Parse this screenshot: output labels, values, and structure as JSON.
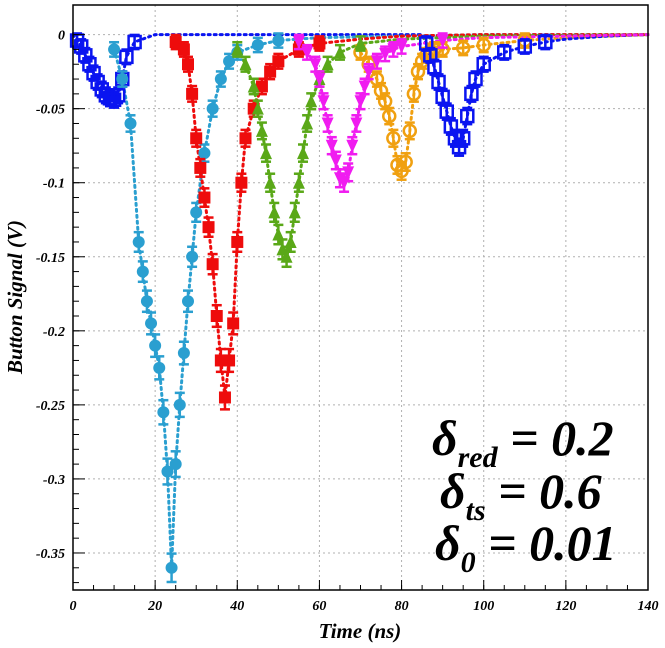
{
  "chart_data": {
    "type": "scatter",
    "title": "",
    "xlabel": "Time (ns)",
    "ylabel": "Button Signal (V)",
    "xlim": [
      0,
      140
    ],
    "ylim": [
      -0.375,
      0.02
    ],
    "xticks": [
      0,
      20,
      40,
      60,
      80,
      100,
      120,
      140
    ],
    "xtick_labels": [
      "0",
      "20",
      "40",
      "60",
      "80",
      "100",
      "120",
      "140"
    ],
    "yticks": [
      0,
      -0.05,
      -0.1,
      -0.15,
      -0.2,
      -0.25,
      -0.3,
      -0.35
    ],
    "ytick_labels": [
      "0",
      "-0.05",
      "-0.1",
      "-0.15",
      "-0.2",
      "-0.25",
      "-0.3",
      "-0.35"
    ],
    "grid": true,
    "annotations": [
      {
        "symbol": "δ",
        "sub": "red",
        "text": " = 0.2"
      },
      {
        "symbol": "δ",
        "sub": "ts",
        "text": " = 0.6"
      },
      {
        "symbol": "δ",
        "sub": "0",
        "text": " = 0.01"
      }
    ],
    "series": [
      {
        "color": "#f0a010",
        "marker": "circle-open",
        "x": [
          70,
          72,
          74,
          75,
          76,
          77,
          78,
          79,
          80,
          81,
          82,
          83,
          84,
          85,
          86,
          87,
          88,
          90,
          95,
          100,
          110,
          120,
          130,
          140
        ],
        "y": [
          -0.012,
          -0.02,
          -0.03,
          -0.038,
          -0.045,
          -0.055,
          -0.07,
          -0.088,
          -0.092,
          -0.086,
          -0.065,
          -0.04,
          -0.025,
          -0.018,
          -0.014,
          -0.011,
          -0.01,
          -0.01,
          -0.009,
          -0.007,
          -0.004,
          -0.002,
          -0.001,
          0
        ]
      },
      {
        "color": "#0a14f0",
        "marker": "square-open",
        "x": [
          0,
          1,
          2,
          3,
          4,
          5,
          6,
          7,
          8,
          9,
          10,
          11,
          12,
          13,
          15,
          20,
          30,
          40,
          50,
          60,
          70,
          80,
          85,
          86,
          87,
          88,
          89,
          90,
          91,
          92,
          93,
          94,
          95,
          96,
          97,
          98,
          100,
          105,
          110,
          115,
          120,
          130,
          140
        ],
        "y": [
          0,
          -0.004,
          -0.008,
          -0.014,
          -0.02,
          -0.026,
          -0.032,
          -0.037,
          -0.041,
          -0.043,
          -0.044,
          -0.041,
          -0.03,
          -0.015,
          -0.005,
          0,
          0,
          0,
          0,
          0,
          0,
          0,
          0,
          -0.006,
          -0.014,
          -0.022,
          -0.032,
          -0.042,
          -0.052,
          -0.062,
          -0.07,
          -0.076,
          -0.07,
          -0.055,
          -0.04,
          -0.03,
          -0.02,
          -0.012,
          -0.008,
          -0.005,
          -0.003,
          -0.001,
          0
        ]
      },
      {
        "color": "#2a9fd0",
        "marker": "circle-filled",
        "x": [
          10,
          12,
          14,
          16,
          17,
          18,
          19,
          20,
          21,
          22,
          23,
          24,
          25,
          26,
          27,
          28,
          29,
          30,
          32,
          34,
          36,
          38,
          40,
          45,
          50,
          60,
          80,
          100,
          140
        ],
        "y": [
          -0.01,
          -0.03,
          -0.06,
          -0.14,
          -0.16,
          -0.18,
          -0.195,
          -0.21,
          -0.225,
          -0.255,
          -0.295,
          -0.36,
          -0.29,
          -0.25,
          -0.215,
          -0.18,
          -0.15,
          -0.12,
          -0.08,
          -0.05,
          -0.03,
          -0.018,
          -0.012,
          -0.007,
          -0.004,
          -0.002,
          -0.001,
          0,
          0
        ]
      },
      {
        "color": "#ee0c0c",
        "marker": "square-filled",
        "x": [
          25,
          27,
          28,
          29,
          30,
          31,
          32,
          33,
          34,
          35,
          36,
          37,
          38,
          39,
          40,
          41,
          42,
          44,
          46,
          48,
          50,
          55,
          60,
          70,
          80,
          100,
          140
        ],
        "y": [
          -0.005,
          -0.01,
          -0.02,
          -0.04,
          -0.07,
          -0.09,
          -0.11,
          -0.13,
          -0.155,
          -0.19,
          -0.22,
          -0.245,
          -0.22,
          -0.195,
          -0.14,
          -0.1,
          -0.07,
          -0.05,
          -0.035,
          -0.025,
          -0.018,
          -0.01,
          -0.006,
          -0.003,
          -0.001,
          0,
          0
        ]
      },
      {
        "color": "#5aa818",
        "marker": "triangle-up",
        "x": [
          40,
          42,
          44,
          45,
          46,
          47,
          48,
          49,
          50,
          51,
          52,
          53,
          54,
          55,
          56,
          57,
          58,
          60,
          62,
          65,
          70,
          80,
          100,
          140
        ],
        "y": [
          -0.01,
          -0.02,
          -0.035,
          -0.05,
          -0.065,
          -0.08,
          -0.1,
          -0.12,
          -0.135,
          -0.145,
          -0.15,
          -0.14,
          -0.12,
          -0.1,
          -0.08,
          -0.06,
          -0.045,
          -0.03,
          -0.02,
          -0.012,
          -0.006,
          -0.003,
          -0.001,
          0
        ]
      },
      {
        "color": "#f01cf0",
        "marker": "triangle-down",
        "x": [
          55,
          57,
          59,
          60,
          61,
          62,
          63,
          64,
          65,
          66,
          67,
          68,
          69,
          70,
          71,
          72,
          74,
          76,
          78,
          80,
          90,
          100,
          140
        ],
        "y": [
          -0.005,
          -0.012,
          -0.02,
          -0.03,
          -0.045,
          -0.06,
          -0.075,
          -0.085,
          -0.097,
          -0.1,
          -0.093,
          -0.075,
          -0.06,
          -0.045,
          -0.035,
          -0.025,
          -0.018,
          -0.013,
          -0.01,
          -0.008,
          -0.004,
          -0.002,
          0
        ]
      }
    ]
  }
}
